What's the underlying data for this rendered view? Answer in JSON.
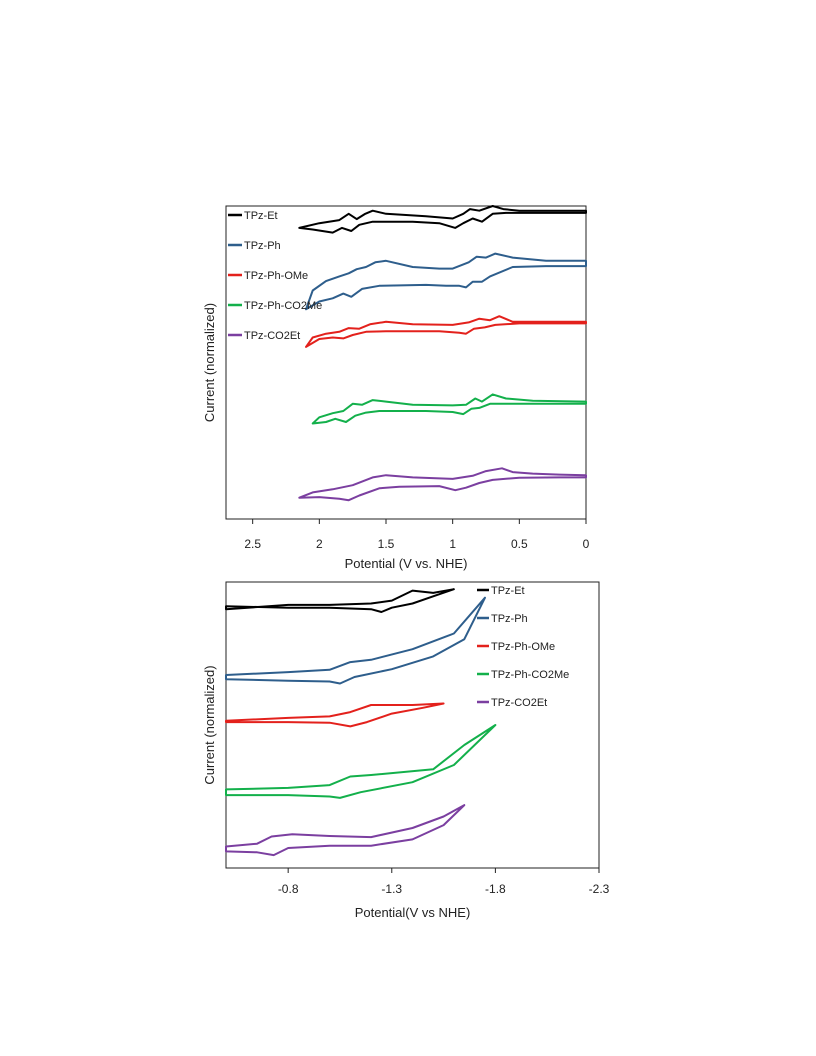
{
  "chart_data": [
    {
      "type": "line",
      "chart_kind": "cyclic voltammogram (oxidation)",
      "xlabel": "Potential (V vs. NHE)",
      "ylabel": "Current (normalized)",
      "xlim": [
        2.7,
        0
      ],
      "x_reversed": true,
      "x_ticks": [
        2.5,
        2,
        1.5,
        1,
        0.5,
        0
      ],
      "x_tick_labels": [
        "2.5",
        "2",
        "1.5",
        "1",
        "0.5",
        "0"
      ],
      "y_ticks_shown": false,
      "grid": false,
      "legend_position": "top-left",
      "series": [
        {
          "name": "TPz-Et",
          "color": "#000000",
          "upper": [
            [
              2.15,
              0.93
            ],
            [
              2.0,
              0.945
            ],
            [
              1.85,
              0.955
            ],
            [
              1.78,
              0.975
            ],
            [
              1.72,
              0.958
            ],
            [
              1.66,
              0.974
            ],
            [
              1.6,
              0.985
            ],
            [
              1.5,
              0.975
            ],
            [
              1.2,
              0.967
            ],
            [
              1.0,
              0.96
            ],
            [
              0.92,
              0.975
            ],
            [
              0.87,
              0.99
            ],
            [
              0.8,
              0.985
            ],
            [
              0.7,
              1.0
            ],
            [
              0.62,
              0.99
            ],
            [
              0.5,
              0.985
            ],
            [
              0.25,
              0.985
            ],
            [
              0.0,
              0.985
            ]
          ],
          "lower": [
            [
              2.15,
              0.93
            ],
            [
              2.05,
              0.925
            ],
            [
              1.9,
              0.915
            ],
            [
              1.83,
              0.93
            ],
            [
              1.76,
              0.92
            ],
            [
              1.7,
              0.94
            ],
            [
              1.6,
              0.95
            ],
            [
              1.3,
              0.95
            ],
            [
              1.1,
              0.945
            ],
            [
              0.98,
              0.93
            ],
            [
              0.92,
              0.945
            ],
            [
              0.85,
              0.96
            ],
            [
              0.78,
              0.95
            ],
            [
              0.7,
              0.975
            ],
            [
              0.6,
              0.978
            ],
            [
              0.3,
              0.978
            ],
            [
              0.0,
              0.978
            ]
          ]
        },
        {
          "name": "TPz-Ph",
          "color": "#2e5e8c",
          "upper": [
            [
              2.1,
              0.67
            ],
            [
              2.05,
              0.73
            ],
            [
              1.95,
              0.76
            ],
            [
              1.85,
              0.775
            ],
            [
              1.78,
              0.785
            ],
            [
              1.72,
              0.798
            ],
            [
              1.65,
              0.805
            ],
            [
              1.58,
              0.82
            ],
            [
              1.5,
              0.825
            ],
            [
              1.3,
              0.805
            ],
            [
              1.1,
              0.8
            ],
            [
              1.0,
              0.8
            ],
            [
              0.88,
              0.82
            ],
            [
              0.82,
              0.838
            ],
            [
              0.75,
              0.835
            ],
            [
              0.68,
              0.848
            ],
            [
              0.55,
              0.835
            ],
            [
              0.3,
              0.825
            ],
            [
              0.0,
              0.825
            ]
          ],
          "lower": [
            [
              2.1,
              0.67
            ],
            [
              2.0,
              0.695
            ],
            [
              1.9,
              0.705
            ],
            [
              1.82,
              0.72
            ],
            [
              1.76,
              0.71
            ],
            [
              1.68,
              0.735
            ],
            [
              1.55,
              0.745
            ],
            [
              1.2,
              0.748
            ],
            [
              1.05,
              0.745
            ],
            [
              0.95,
              0.745
            ],
            [
              0.9,
              0.74
            ],
            [
              0.85,
              0.758
            ],
            [
              0.78,
              0.758
            ],
            [
              0.72,
              0.775
            ],
            [
              0.55,
              0.805
            ],
            [
              0.3,
              0.808
            ],
            [
              0.0,
              0.808
            ]
          ]
        },
        {
          "name": "TPz-Ph-OMe",
          "color": "#e3211c",
          "upper": [
            [
              2.1,
              0.55
            ],
            [
              2.05,
              0.58
            ],
            [
              1.95,
              0.592
            ],
            [
              1.85,
              0.598
            ],
            [
              1.78,
              0.61
            ],
            [
              1.7,
              0.608
            ],
            [
              1.62,
              0.622
            ],
            [
              1.5,
              0.63
            ],
            [
              1.3,
              0.622
            ],
            [
              1.0,
              0.62
            ],
            [
              0.88,
              0.628
            ],
            [
              0.8,
              0.64
            ],
            [
              0.72,
              0.635
            ],
            [
              0.65,
              0.648
            ],
            [
              0.55,
              0.63
            ],
            [
              0.3,
              0.63
            ],
            [
              0.0,
              0.63
            ]
          ],
          "lower": [
            [
              2.1,
              0.55
            ],
            [
              2.0,
              0.575
            ],
            [
              1.9,
              0.58
            ],
            [
              1.82,
              0.577
            ],
            [
              1.75,
              0.588
            ],
            [
              1.65,
              0.598
            ],
            [
              1.5,
              0.6
            ],
            [
              1.1,
              0.6
            ],
            [
              0.95,
              0.595
            ],
            [
              0.9,
              0.592
            ],
            [
              0.84,
              0.608
            ],
            [
              0.76,
              0.612
            ],
            [
              0.68,
              0.62
            ],
            [
              0.5,
              0.625
            ],
            [
              0.0,
              0.625
            ]
          ]
        },
        {
          "name": "TPz-Ph-CO2Me",
          "color": "#13b04b",
          "upper": [
            [
              2.05,
              0.305
            ],
            [
              2.0,
              0.325
            ],
            [
              1.9,
              0.338
            ],
            [
              1.82,
              0.345
            ],
            [
              1.75,
              0.368
            ],
            [
              1.68,
              0.365
            ],
            [
              1.6,
              0.38
            ],
            [
              1.5,
              0.375
            ],
            [
              1.3,
              0.365
            ],
            [
              1.0,
              0.363
            ],
            [
              0.9,
              0.365
            ],
            [
              0.83,
              0.385
            ],
            [
              0.78,
              0.375
            ],
            [
              0.7,
              0.398
            ],
            [
              0.6,
              0.385
            ],
            [
              0.4,
              0.378
            ],
            [
              0.0,
              0.375
            ]
          ],
          "lower": [
            [
              2.05,
              0.305
            ],
            [
              1.95,
              0.31
            ],
            [
              1.88,
              0.32
            ],
            [
              1.8,
              0.31
            ],
            [
              1.73,
              0.33
            ],
            [
              1.65,
              0.34
            ],
            [
              1.55,
              0.345
            ],
            [
              1.2,
              0.345
            ],
            [
              1.0,
              0.342
            ],
            [
              0.92,
              0.335
            ],
            [
              0.86,
              0.352
            ],
            [
              0.8,
              0.355
            ],
            [
              0.72,
              0.368
            ],
            [
              0.6,
              0.368
            ],
            [
              0.3,
              0.368
            ],
            [
              0.0,
              0.368
            ]
          ]
        },
        {
          "name": "TPz-CO2Et",
          "color": "#7b3fa0",
          "upper": [
            [
              2.15,
              0.068
            ],
            [
              2.05,
              0.085
            ],
            [
              1.9,
              0.095
            ],
            [
              1.75,
              0.108
            ],
            [
              1.6,
              0.133
            ],
            [
              1.5,
              0.14
            ],
            [
              1.3,
              0.133
            ],
            [
              1.0,
              0.128
            ],
            [
              0.85,
              0.138
            ],
            [
              0.75,
              0.153
            ],
            [
              0.63,
              0.162
            ],
            [
              0.55,
              0.15
            ],
            [
              0.4,
              0.145
            ],
            [
              0.2,
              0.142
            ],
            [
              0.0,
              0.14
            ]
          ],
          "lower": [
            [
              2.15,
              0.068
            ],
            [
              2.0,
              0.07
            ],
            [
              1.85,
              0.065
            ],
            [
              1.78,
              0.06
            ],
            [
              1.7,
              0.075
            ],
            [
              1.55,
              0.098
            ],
            [
              1.4,
              0.103
            ],
            [
              1.1,
              0.105
            ],
            [
              0.98,
              0.092
            ],
            [
              0.9,
              0.1
            ],
            [
              0.8,
              0.115
            ],
            [
              0.7,
              0.125
            ],
            [
              0.5,
              0.132
            ],
            [
              0.2,
              0.133
            ],
            [
              0.0,
              0.133
            ]
          ]
        }
      ]
    },
    {
      "type": "line",
      "chart_kind": "cyclic voltammogram (reduction)",
      "xlabel": "Potential(V vs NHE)",
      "ylabel": "Current (normalized)",
      "xlim": [
        -0.5,
        -2.3
      ],
      "x_reversed": true,
      "x_ticks": [
        -0.8,
        -1.3,
        -1.8,
        -2.3
      ],
      "x_tick_labels": [
        "-0.8",
        "-1.3",
        "-1.8",
        "-2.3"
      ],
      "y_ticks_shown": false,
      "grid": false,
      "legend_position": "top-right",
      "series": [
        {
          "name": "TPz-Et",
          "color": "#000000",
          "upper": [
            [
              -0.5,
              0.905
            ],
            [
              -0.8,
              0.92
            ],
            [
              -1.0,
              0.92
            ],
            [
              -1.2,
              0.925
            ],
            [
              -1.3,
              0.935
            ],
            [
              -1.4,
              0.97
            ],
            [
              -1.5,
              0.962
            ],
            [
              -1.6,
              0.975
            ]
          ],
          "lower": [
            [
              -0.5,
              0.915
            ],
            [
              -0.8,
              0.91
            ],
            [
              -1.0,
              0.91
            ],
            [
              -1.2,
              0.905
            ],
            [
              -1.25,
              0.895
            ],
            [
              -1.3,
              0.91
            ],
            [
              -1.4,
              0.925
            ],
            [
              -1.5,
              0.95
            ],
            [
              -1.6,
              0.975
            ]
          ]
        },
        {
          "name": "TPz-Ph",
          "color": "#2e5e8c",
          "upper": [
            [
              -0.5,
              0.675
            ],
            [
              -0.8,
              0.685
            ],
            [
              -1.0,
              0.693
            ],
            [
              -1.1,
              0.72
            ],
            [
              -1.2,
              0.728
            ],
            [
              -1.4,
              0.765
            ],
            [
              -1.6,
              0.82
            ],
            [
              -1.75,
              0.945
            ]
          ],
          "lower": [
            [
              -0.5,
              0.66
            ],
            [
              -0.8,
              0.655
            ],
            [
              -1.0,
              0.652
            ],
            [
              -1.05,
              0.645
            ],
            [
              -1.12,
              0.668
            ],
            [
              -1.3,
              0.695
            ],
            [
              -1.5,
              0.74
            ],
            [
              -1.65,
              0.8
            ],
            [
              -1.75,
              0.945
            ]
          ]
        },
        {
          "name": "TPz-Ph-OMe",
          "color": "#e3211c",
          "upper": [
            [
              -0.5,
              0.515
            ],
            [
              -0.8,
              0.525
            ],
            [
              -1.0,
              0.53
            ],
            [
              -1.1,
              0.545
            ],
            [
              -1.2,
              0.57
            ],
            [
              -1.3,
              0.57
            ],
            [
              -1.4,
              0.57
            ],
            [
              -1.55,
              0.575
            ]
          ],
          "lower": [
            [
              -0.5,
              0.51
            ],
            [
              -0.8,
              0.51
            ],
            [
              -1.0,
              0.508
            ],
            [
              -1.1,
              0.495
            ],
            [
              -1.18,
              0.51
            ],
            [
              -1.3,
              0.54
            ],
            [
              -1.45,
              0.56
            ],
            [
              -1.55,
              0.575
            ]
          ]
        },
        {
          "name": "TPz-Ph-CO2Me",
          "color": "#13b04b",
          "upper": [
            [
              -0.5,
              0.275
            ],
            [
              -0.8,
              0.28
            ],
            [
              -1.0,
              0.29
            ],
            [
              -1.1,
              0.32
            ],
            [
              -1.2,
              0.325
            ],
            [
              -1.5,
              0.345
            ],
            [
              -1.65,
              0.43
            ],
            [
              -1.8,
              0.5
            ]
          ],
          "lower": [
            [
              -0.5,
              0.255
            ],
            [
              -0.8,
              0.255
            ],
            [
              -1.0,
              0.25
            ],
            [
              -1.05,
              0.245
            ],
            [
              -1.15,
              0.265
            ],
            [
              -1.4,
              0.3
            ],
            [
              -1.6,
              0.36
            ],
            [
              -1.8,
              0.5
            ]
          ]
        },
        {
          "name": "TPz-CO2Et",
          "color": "#7b3fa0",
          "upper": [
            [
              -0.5,
              0.075
            ],
            [
              -0.65,
              0.085
            ],
            [
              -0.72,
              0.11
            ],
            [
              -0.82,
              0.118
            ],
            [
              -1.0,
              0.112
            ],
            [
              -1.2,
              0.108
            ],
            [
              -1.4,
              0.14
            ],
            [
              -1.55,
              0.18
            ],
            [
              -1.65,
              0.22
            ]
          ],
          "lower": [
            [
              -0.5,
              0.058
            ],
            [
              -0.65,
              0.055
            ],
            [
              -0.73,
              0.045
            ],
            [
              -0.8,
              0.07
            ],
            [
              -1.0,
              0.078
            ],
            [
              -1.2,
              0.078
            ],
            [
              -1.4,
              0.1
            ],
            [
              -1.55,
              0.15
            ],
            [
              -1.65,
              0.22
            ]
          ]
        }
      ]
    }
  ]
}
